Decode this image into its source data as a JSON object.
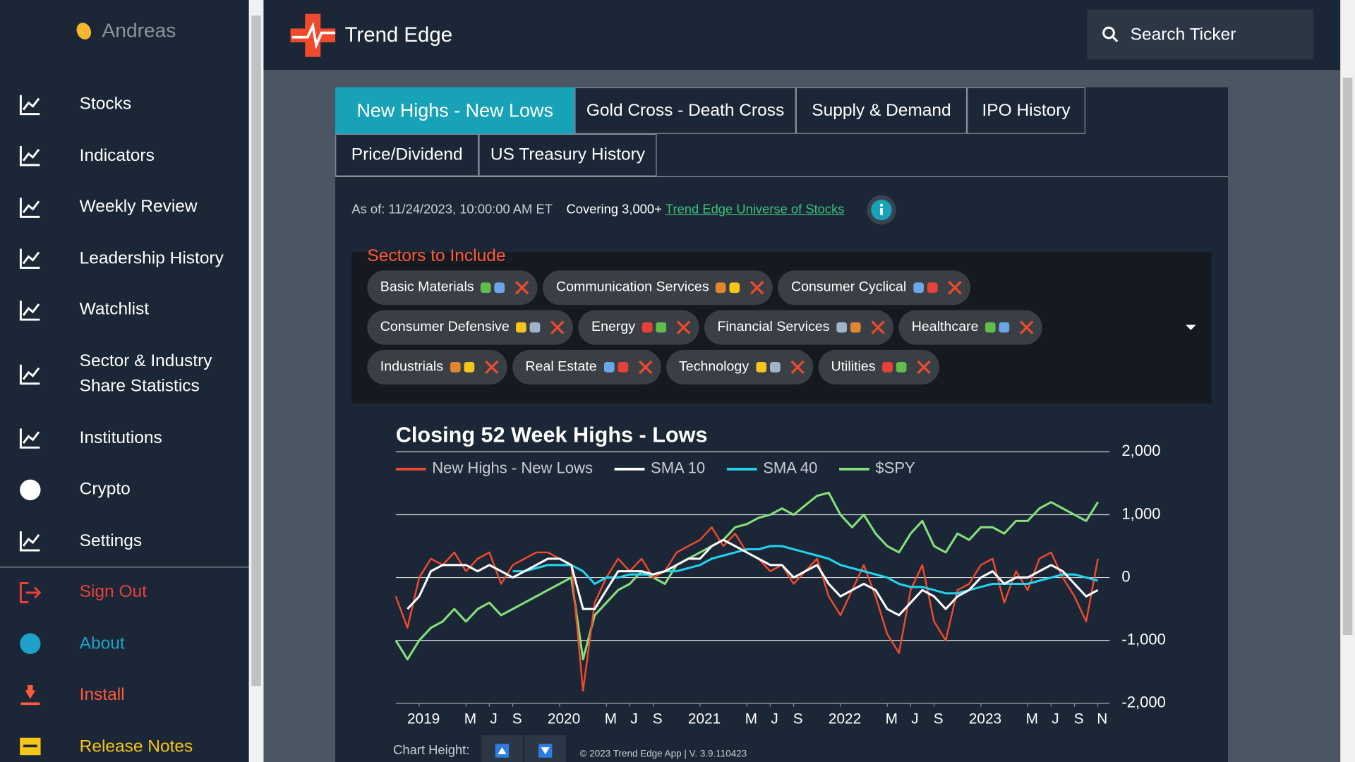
{
  "sidebar": {
    "user": "Andreas",
    "items": [
      "Stocks",
      "Indicators",
      "Weekly Review",
      "Leadership History",
      "Watchlist",
      "Sector & Industry Share Statistics",
      "Institutions",
      "Crypto",
      "Settings"
    ],
    "footer_items": [
      "Sign Out",
      "About",
      "Install",
      "Release Notes"
    ]
  },
  "header": {
    "app_name": "Trend Edge",
    "search_placeholder": "Search Ticker"
  },
  "tabs": [
    "New Highs - New Lows",
    "Gold Cross - Death Cross",
    "Supply & Demand",
    "IPO History",
    "Price/Dividend",
    "US Treasury History"
  ],
  "status": {
    "as_of": "As of: 11/24/2023, 10:00:00 AM ET",
    "covering": "Covering 3,000+",
    "link": "Trend Edge Universe of Stocks"
  },
  "sectors": {
    "title": "Sectors to Include",
    "chips": [
      "Basic Materials",
      "Communication Services",
      "Consumer Cyclical",
      "Consumer Defensive",
      "Energy",
      "Financial Services",
      "Healthcare",
      "Industrials",
      "Real Estate",
      "Technology",
      "Utilities"
    ]
  },
  "chart_data": {
    "type": "line",
    "title": "Closing 52 Week Highs - Lows",
    "x": [
      "2018-11",
      "2018-12",
      "2019-01",
      "2019-02",
      "2019-03",
      "2019-04",
      "2019-05",
      "2019-06",
      "2019-07",
      "2019-08",
      "2019-09",
      "2019-10",
      "2019-11",
      "2019-12",
      "2020-01",
      "2020-02",
      "2020-03",
      "2020-04",
      "2020-05",
      "2020-06",
      "2020-07",
      "2020-08",
      "2020-09",
      "2020-10",
      "2020-11",
      "2020-12",
      "2021-01",
      "2021-02",
      "2021-03",
      "2021-04",
      "2021-05",
      "2021-06",
      "2021-07",
      "2021-08",
      "2021-09",
      "2021-10",
      "2021-11",
      "2021-12",
      "2022-01",
      "2022-02",
      "2022-03",
      "2022-04",
      "2022-05",
      "2022-06",
      "2022-07",
      "2022-08",
      "2022-09",
      "2022-10",
      "2022-11",
      "2022-12",
      "2023-01",
      "2023-02",
      "2023-03",
      "2023-04",
      "2023-05",
      "2023-06",
      "2023-07",
      "2023-08",
      "2023-09",
      "2023-10",
      "2023-11"
    ],
    "series": [
      {
        "name": "New Highs - New Lows",
        "color": "#f04a2c",
        "values": [
          -300,
          -800,
          0,
          300,
          200,
          400,
          100,
          300,
          400,
          -100,
          200,
          300,
          400,
          400,
          300,
          200,
          -1800,
          -400,
          0,
          300,
          100,
          300,
          0,
          100,
          400,
          500,
          600,
          800,
          500,
          700,
          400,
          300,
          100,
          200,
          -100,
          100,
          300,
          -300,
          -600,
          -200,
          200,
          -300,
          -900,
          -1200,
          -200,
          200,
          -700,
          -1000,
          -200,
          -100,
          200,
          300,
          -400,
          100,
          -200,
          300,
          400,
          0,
          -300,
          -700,
          300
        ]
      },
      {
        "name": "SMA 10",
        "color": "#ffffff",
        "values": [
          null,
          -500,
          -300,
          100,
          200,
          200,
          200,
          100,
          200,
          100,
          0,
          100,
          200,
          300,
          300,
          200,
          -500,
          -500,
          -200,
          100,
          100,
          100,
          50,
          100,
          200,
          300,
          300,
          500,
          600,
          500,
          400,
          300,
          200,
          200,
          0,
          100,
          200,
          -100,
          -300,
          -200,
          -100,
          -200,
          -500,
          -600,
          -400,
          -200,
          -300,
          -500,
          -300,
          -200,
          0,
          100,
          -100,
          0,
          0,
          100,
          200,
          100,
          -100,
          -300,
          -200
        ]
      },
      {
        "name": "SMA 40",
        "color": "#22d3ee",
        "values": [
          null,
          null,
          null,
          null,
          null,
          null,
          null,
          null,
          null,
          null,
          100,
          100,
          150,
          200,
          200,
          200,
          100,
          -100,
          0,
          0,
          50,
          50,
          50,
          100,
          100,
          150,
          200,
          300,
          350,
          400,
          450,
          450,
          500,
          500,
          450,
          400,
          350,
          300,
          200,
          150,
          100,
          50,
          0,
          -100,
          -150,
          -150,
          -200,
          -250,
          -250,
          -200,
          -150,
          -100,
          -100,
          -100,
          -100,
          -50,
          0,
          50,
          50,
          0,
          -50
        ]
      },
      {
        "name": "$SPY",
        "color": "#86e07a",
        "values": [
          -1000,
          -1300,
          -1000,
          -800,
          -700,
          -500,
          -700,
          -500,
          -400,
          -600,
          -500,
          -400,
          -300,
          -200,
          -100,
          0,
          -1300,
          -600,
          -400,
          -200,
          -100,
          100,
          0,
          -100,
          200,
          300,
          400,
          500,
          600,
          800,
          850,
          950,
          1000,
          1100,
          1000,
          1150,
          1300,
          1350,
          1000,
          800,
          1000,
          700,
          500,
          400,
          700,
          900,
          500,
          400,
          700,
          600,
          800,
          800,
          700,
          900,
          900,
          1100,
          1200,
          1100,
          1000,
          900,
          1200
        ]
      }
    ],
    "xlim": [
      "2018-11",
      "2023-12"
    ],
    "xticks": [
      {
        "value": "2019-01",
        "label": "2019"
      },
      {
        "value": "2019-05",
        "label": "M"
      },
      {
        "value": "2019-07",
        "label": "J"
      },
      {
        "value": "2019-09",
        "label": "S"
      },
      {
        "value": "2020-01",
        "label": "2020"
      },
      {
        "value": "2020-05",
        "label": "M"
      },
      {
        "value": "2020-07",
        "label": "J"
      },
      {
        "value": "2020-09",
        "label": "S"
      },
      {
        "value": "2021-01",
        "label": "2021"
      },
      {
        "value": "2021-05",
        "label": "M"
      },
      {
        "value": "2021-07",
        "label": "J"
      },
      {
        "value": "2021-09",
        "label": "S"
      },
      {
        "value": "2022-01",
        "label": "2022"
      },
      {
        "value": "2022-05",
        "label": "M"
      },
      {
        "value": "2022-07",
        "label": "J"
      },
      {
        "value": "2022-09",
        "label": "S"
      },
      {
        "value": "2023-01",
        "label": "2023"
      },
      {
        "value": "2023-05",
        "label": "M"
      },
      {
        "value": "2023-07",
        "label": "J"
      },
      {
        "value": "2023-09",
        "label": "S"
      },
      {
        "value": "2023-11",
        "label": "N"
      }
    ],
    "ylim": [
      -2000,
      2000
    ],
    "yticks": [
      {
        "value": 2000,
        "label": "2,000"
      },
      {
        "value": 1000,
        "label": "1,000"
      },
      0,
      {
        "value": -1000,
        "label": "-1,000"
      },
      {
        "value": -2000,
        "label": "-2,000"
      }
    ],
    "grid": true,
    "legend": "top-left"
  },
  "footer": {
    "chart_height_label": "Chart Height:",
    "copyright": "© 2023 Trend Edge App | V. 3.9.110423"
  }
}
